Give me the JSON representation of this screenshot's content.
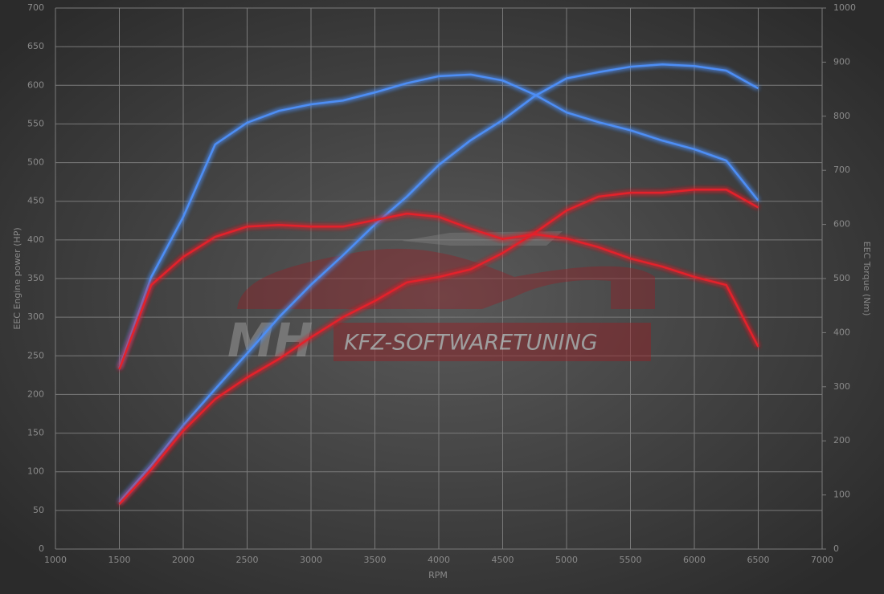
{
  "chart_data": {
    "type": "line",
    "xlabel": "RPM",
    "ylabel": "EEC Engine power (HP)",
    "y2label": "EEC Torque (Nm)",
    "watermark": [
      "MH",
      "KFZ-SOFTWARETUNING"
    ],
    "x": [
      1500,
      1750,
      2000,
      2250,
      2500,
      2750,
      3000,
      3250,
      3500,
      3750,
      4000,
      4250,
      4500,
      4750,
      5000,
      5250,
      5500,
      5750,
      6000,
      6250,
      6500
    ],
    "series": [
      {
        "color": "#4d8ef5",
        "values": [
          61,
          108,
          160,
          207,
          253,
          300,
          342,
          380,
          420,
          456,
          497,
          529,
          555,
          586,
          609,
          617,
          624,
          627,
          625,
          619,
          596
        ]
      },
      {
        "color": "#e3222c",
        "values": [
          58,
          103,
          153,
          194,
          222,
          246,
          274,
          300,
          321,
          345,
          352,
          362,
          383,
          409,
          438,
          456,
          461,
          461,
          465,
          465,
          442
        ]
      },
      {
        "color": "#4d8ef5",
        "axis": "y2",
        "values": [
          335,
          503,
          614,
          748,
          788,
          810,
          822,
          829,
          844,
          861,
          874,
          877,
          866,
          840,
          807,
          789,
          774,
          755,
          739,
          718,
          644
        ]
      },
      {
        "color": "#e3222c",
        "axis": "y2",
        "values": [
          332,
          488,
          540,
          577,
          596,
          599,
          596,
          596,
          608,
          620,
          614,
          592,
          573,
          582,
          574,
          558,
          537,
          522,
          503,
          488,
          374
        ]
      }
    ],
    "xlim": [
      1000,
      7000
    ],
    "xticks": [
      1000,
      1500,
      2000,
      2500,
      3000,
      3500,
      4000,
      4500,
      5000,
      5500,
      6000,
      6500,
      7000
    ],
    "ylim": [
      0,
      700
    ],
    "yticks": [
      0,
      50,
      100,
      150,
      200,
      250,
      300,
      350,
      400,
      450,
      500,
      550,
      600,
      650,
      700
    ],
    "y2lim": [
      0,
      1000
    ],
    "y2ticks": [
      0,
      100,
      200,
      300,
      400,
      500,
      600,
      700,
      800,
      900,
      1000
    ],
    "grid": true
  }
}
